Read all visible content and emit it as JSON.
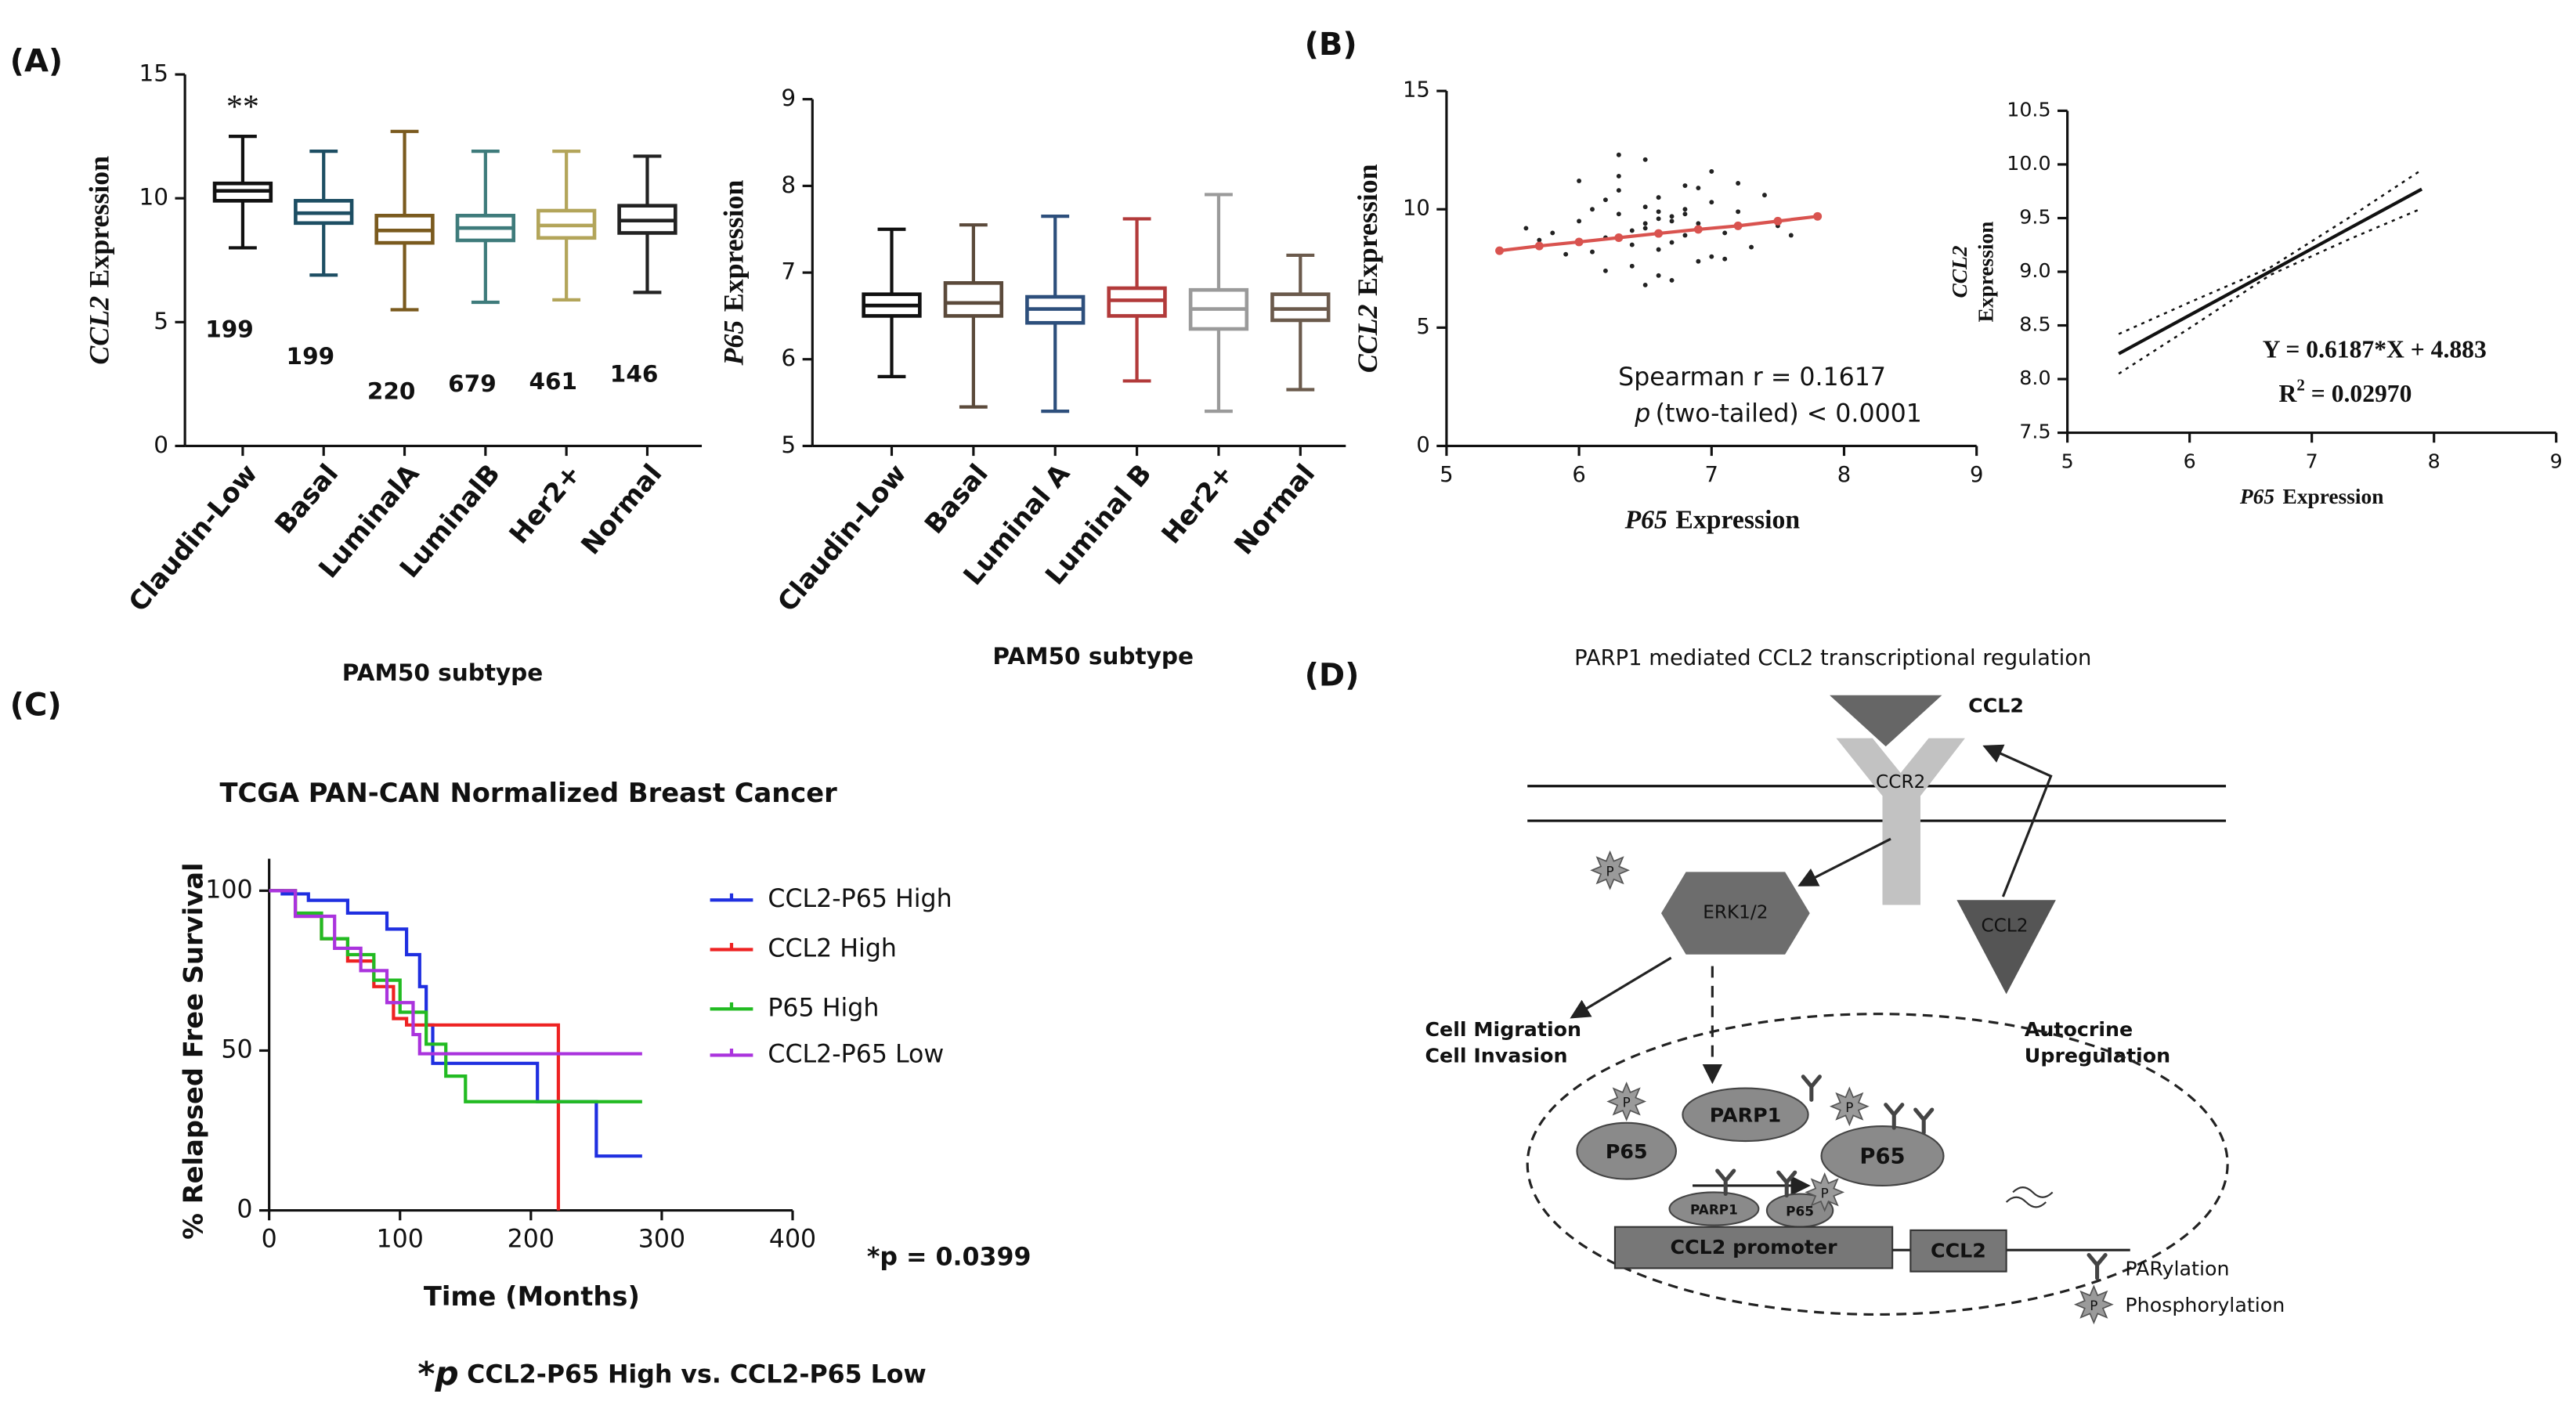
{
  "panel_labels": [
    "(A)",
    "(B)",
    "(C)",
    "(D)"
  ],
  "chart_data": [
    {
      "type": "box",
      "ylabel": {
        "gene": "CCL2",
        "text": "Expression"
      },
      "xlabel": "PAM50 subtype",
      "categories": [
        "Claudin-Low",
        "Basal",
        "LuminalA",
        "LuminalB",
        "Her2+",
        "Normal"
      ],
      "colors": [
        "#111111",
        "#1d4e63",
        "#7a5a1e",
        "#3e7b7b",
        "#b3a55a",
        "#222222"
      ],
      "min": [
        8.0,
        6.9,
        5.5,
        5.8,
        5.9,
        6.2
      ],
      "q1": [
        9.9,
        9.0,
        8.2,
        8.3,
        8.4,
        8.6
      ],
      "median": [
        10.3,
        9.4,
        8.7,
        8.8,
        8.9,
        9.1
      ],
      "q3": [
        10.6,
        9.9,
        9.3,
        9.3,
        9.5,
        9.7
      ],
      "max": [
        12.5,
        11.9,
        12.7,
        11.9,
        11.9,
        11.7
      ],
      "n": [
        199,
        199,
        220,
        679,
        461,
        146
      ],
      "annotation": "**",
      "ylim": [
        0,
        15
      ],
      "yticks": [
        0,
        5,
        10,
        15
      ]
    },
    {
      "type": "box",
      "ylabel": {
        "gene": "P65",
        "text": "Expression"
      },
      "xlabel": "PAM50 subtype",
      "categories": [
        "Claudin-Low",
        "Basal",
        "Luminal A",
        "Luminal B",
        "Her2+",
        "Normal"
      ],
      "colors": [
        "#111111",
        "#5b4a3b",
        "#2d4f7c",
        "#b23a3a",
        "#9a9a9a",
        "#6b5a4c"
      ],
      "min": [
        5.8,
        5.45,
        5.4,
        5.75,
        5.4,
        5.65
      ],
      "q1": [
        6.5,
        6.5,
        6.42,
        6.5,
        6.35,
        6.45
      ],
      "median": [
        6.62,
        6.65,
        6.58,
        6.68,
        6.58,
        6.58
      ],
      "q3": [
        6.75,
        6.88,
        6.72,
        6.82,
        6.8,
        6.75
      ],
      "max": [
        7.5,
        7.55,
        7.65,
        7.62,
        7.9,
        7.2
      ],
      "ylim": [
        5,
        9
      ],
      "yticks": [
        5,
        6,
        7,
        8,
        9
      ]
    },
    {
      "type": "scatter",
      "xlabel": {
        "gene": "P65",
        "text": "Expression"
      },
      "ylabel": {
        "gene": "CCL2",
        "text": "Expression"
      },
      "color": "#222222",
      "x": [
        6.5,
        6.7,
        6.3,
        6.9,
        6.6,
        6.2,
        7.1,
        6.4,
        6.8,
        6.0,
        7.3,
        6.5,
        6.7,
        5.9,
        6.6,
        7.0,
        6.3,
        6.8,
        6.1,
        7.2,
        6.5,
        6.9,
        6.4,
        5.8,
        7.4,
        6.6,
        6.2,
        7.0,
        6.7,
        6.3,
        5.7,
        7.5,
        6.5,
        6.8,
        6.0,
        7.1,
        6.4,
        6.9,
        6.6,
        5.6,
        7.6,
        6.3,
        6.7,
        6.1,
        7.2,
        6.5,
        6.8,
        6.2,
        7.0,
        6.6
      ],
      "y": [
        9.2,
        8.6,
        9.8,
        9.4,
        10.5,
        8.8,
        9.0,
        7.6,
        11.0,
        9.5,
        8.4,
        10.1,
        9.7,
        8.1,
        7.2,
        10.3,
        11.4,
        8.9,
        10.0,
        9.9,
        12.1,
        7.8,
        9.1,
        9.0,
        10.6,
        8.3,
        7.4,
        11.6,
        9.5,
        10.8,
        8.7,
        9.3,
        6.8,
        10.0,
        11.2,
        7.9,
        8.5,
        10.9,
        9.6,
        9.2,
        8.9,
        12.3,
        7.0,
        8.2,
        11.1,
        9.4,
        9.8,
        10.4,
        8.0,
        9.9
      ],
      "fit": {
        "color": "#d9534f",
        "x": [
          5.4,
          5.7,
          6.0,
          6.3,
          6.6,
          6.9,
          7.2,
          7.5,
          7.8
        ],
        "y": [
          8.25,
          8.45,
          8.62,
          8.8,
          8.98,
          9.15,
          9.3,
          9.5,
          9.7
        ]
      },
      "stats": {
        "r": "Spearman r = 0.1617",
        "p_symbol": "p",
        "p_text": "(two-tailed) < 0.0001"
      },
      "xlim": [
        5,
        9
      ],
      "xticks": [
        5,
        6,
        7,
        8,
        9
      ],
      "ylim": [
        0,
        15
      ],
      "yticks": [
        0,
        5,
        10,
        15
      ]
    },
    {
      "type": "regression",
      "xlabel": {
        "gene": "P65",
        "text": "Expression"
      },
      "ylabel": {
        "gene": "CCL2",
        "text": "Expression"
      },
      "x": [
        5.42,
        6.0,
        6.66,
        7.3,
        7.9
      ],
      "fit": [
        8.236,
        8.595,
        9.003,
        9.4,
        9.77
      ],
      "upper": [
        8.42,
        8.715,
        9.04,
        9.5,
        9.95
      ],
      "lower": [
        8.05,
        8.475,
        8.97,
        9.3,
        9.59
      ],
      "equation": "Y = 0.6187*X + 4.883",
      "r2": {
        "base": "R",
        "sup": "2",
        "rest": " = 0.02970"
      },
      "xlim": [
        5,
        9
      ],
      "xticks": [
        5,
        6,
        7,
        8,
        9
      ],
      "ylim": [
        7.5,
        10.5
      ],
      "yticks": [
        7.5,
        {
          "value": 8,
          "label": "8.0"
        },
        8.5,
        {
          "value": 9,
          "label": "9.0"
        },
        9.5,
        {
          "value": 10,
          "label": "10.0"
        },
        10.5
      ]
    },
    {
      "type": "survival",
      "title": "TCGA PAN-CAN Normalized Breast Cancer",
      "ylabel": "% Relapsed Free Survival",
      "xlabel": "Time (Months)",
      "series": [
        {
          "name": "CCL2-P65 High",
          "color": "#1f2fe0",
          "x": [
            0,
            10,
            30,
            60,
            90,
            105,
            115,
            120,
            125,
            200,
            205,
            245,
            250,
            285
          ],
          "values": [
            100,
            99,
            97,
            93,
            88,
            80,
            70,
            58,
            46,
            46,
            34,
            34,
            17,
            17
          ]
        },
        {
          "name": "CCL2 High",
          "color": "#ee2222",
          "x": [
            0,
            20,
            40,
            60,
            80,
            95,
            105,
            220,
            221
          ],
          "values": [
            100,
            92,
            85,
            78,
            70,
            60,
            58,
            58,
            0
          ]
        },
        {
          "name": "P65 High",
          "color": "#22bb22",
          "x": [
            0,
            20,
            40,
            60,
            80,
            100,
            120,
            135,
            150,
            285
          ],
          "values": [
            100,
            93,
            85,
            80,
            72,
            62,
            52,
            42,
            34,
            34
          ]
        },
        {
          "name": "CCL2-P65 Low",
          "color": "#aa33dd",
          "x": [
            0,
            20,
            50,
            70,
            90,
            110,
            115,
            285
          ],
          "values": [
            100,
            92,
            82,
            75,
            65,
            55,
            49,
            49
          ]
        }
      ],
      "p_label": "*p = 0.0399",
      "comparison": {
        "star": "*",
        "symbol": "p",
        "text": "CCL2-P65 High vs. CCL2-P65 Low"
      },
      "xlim": [
        0,
        400
      ],
      "xticks": [
        0,
        100,
        200,
        300,
        400
      ],
      "ylim": [
        0,
        110
      ],
      "yticks": [
        0,
        50,
        100
      ]
    }
  ],
  "diagram": {
    "title": "PARP1 mediated CCL2 transcriptional regulation",
    "ligand": "CCL2",
    "receptor": "CCR2",
    "kinase": "ERK1/2",
    "secreted": "CCL2",
    "phospho_symbol": "P",
    "effects": [
      "Cell Migration",
      "Cell Invasion"
    ],
    "feedback": [
      "Autocrine",
      "Upregulation"
    ],
    "nucleus": {
      "p65_left": "P65",
      "parp1": "PARP1",
      "p65_right": "P65",
      "parp1_small": "PARP1",
      "p65_small": "P65",
      "promoter": "CCL2 promoter",
      "gene": "CCL2"
    },
    "legend": [
      "PARylation",
      "Phosphorylation"
    ]
  }
}
